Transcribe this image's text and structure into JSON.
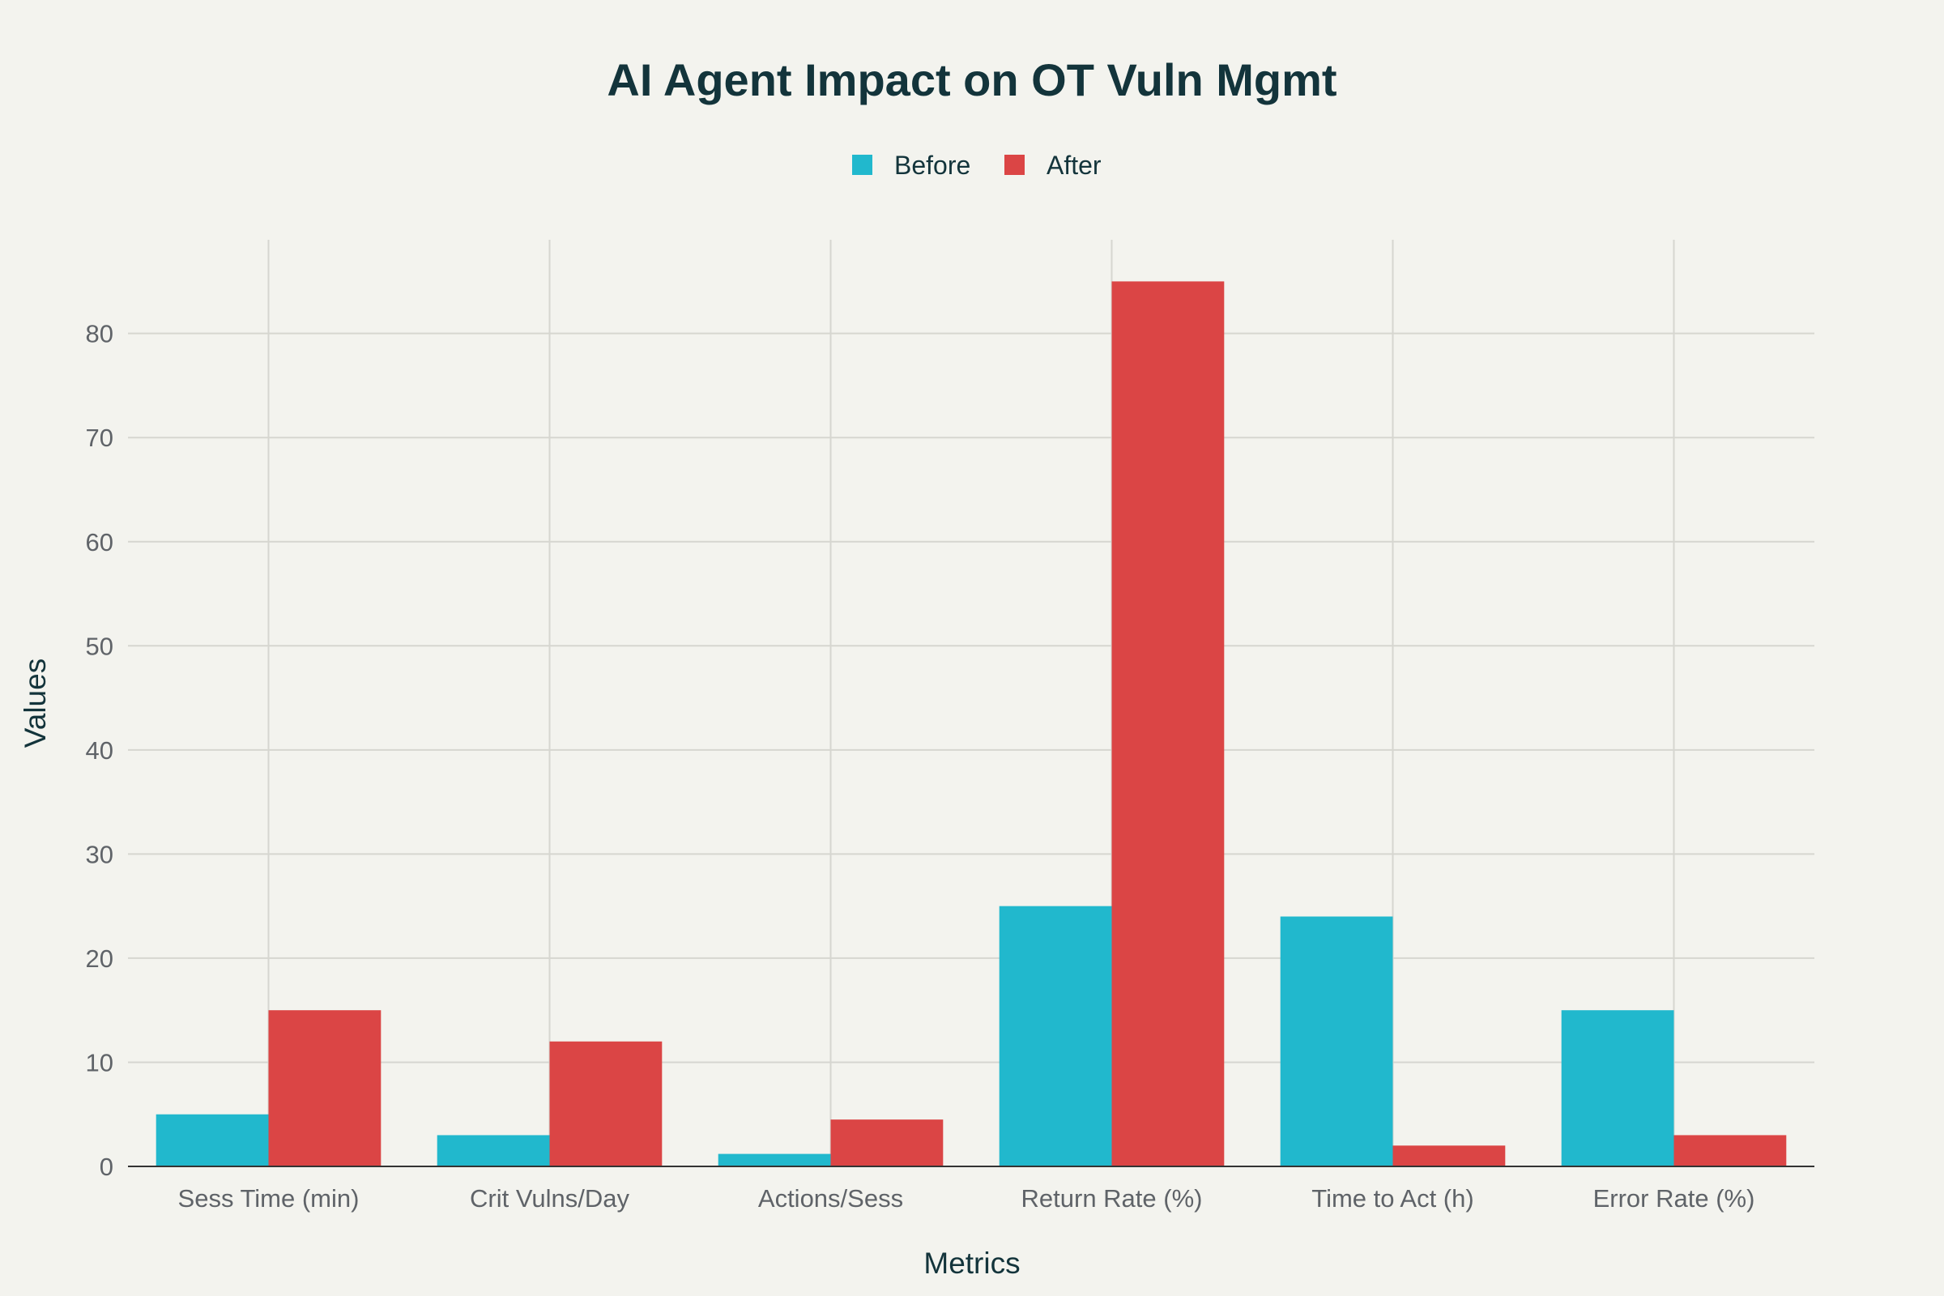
{
  "chart_data": {
    "type": "bar",
    "title": "AI Agent Impact on OT Vuln Mgmt",
    "xlabel": "Metrics",
    "ylabel": "Values",
    "categories": [
      "Sess Time (min)",
      "Crit Vulns/Day",
      "Actions/Sess",
      "Return Rate (%)",
      "Time to Act (h)",
      "Error Rate (%)"
    ],
    "series": [
      {
        "name": "Before",
        "color": "#21b8cd",
        "values": [
          5,
          3,
          1.2,
          25,
          24,
          15
        ]
      },
      {
        "name": "After",
        "color": "#db4545",
        "values": [
          15,
          12,
          4.5,
          85,
          2,
          3
        ]
      }
    ],
    "ylim": [
      0,
      89
    ],
    "yticks": [
      0,
      10,
      20,
      30,
      40,
      50,
      60,
      70,
      80
    ],
    "grid": true,
    "legend_position": "top-center"
  }
}
